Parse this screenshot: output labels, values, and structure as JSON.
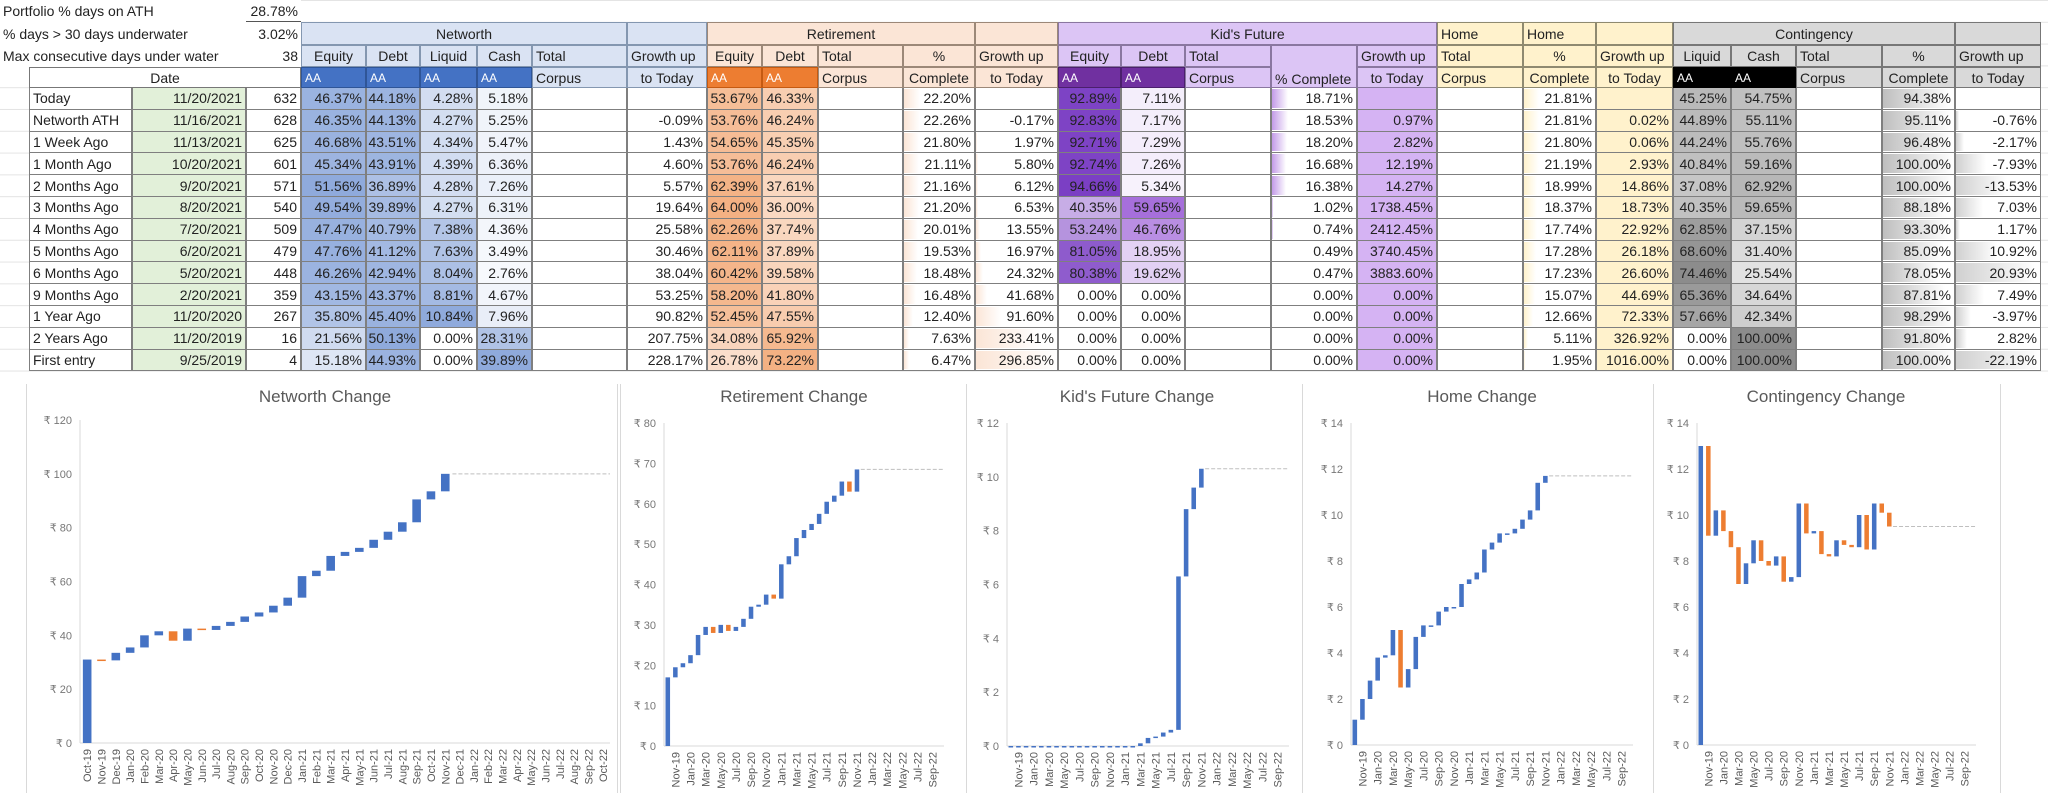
{
  "summary": [
    {
      "label": "Portfolio % days on ATH",
      "value": "28.78%"
    },
    {
      "label": "% days > 30 days underwater",
      "value": "3.02%"
    },
    {
      "label": "Max consecutive days under water",
      "value": "38"
    }
  ],
  "groups": {
    "networth": "Networth",
    "retirement": "Retirement",
    "kids": "Kid's Future",
    "home_total": "Home",
    "home": "Home",
    "contingency": "Contingency"
  },
  "col_headers": {
    "equity": "Equity",
    "debt": "Debt",
    "liquid": "Liquid",
    "cash": "Cash",
    "total": "Total",
    "corpus": "Corpus",
    "growth1": "Growth up",
    "growth2": "to Today",
    "pct": "%",
    "complete": "Complete",
    "pct_complete": "% Complete",
    "aa": "AA",
    "date": "Date"
  },
  "colors": {
    "networth": "#4472c4",
    "retirement": "#ed7d31",
    "kids": "#7030a0",
    "home": "#ffd966",
    "contingency": "#000000",
    "increase": "#4472c4",
    "decrease": "#ed7d31"
  },
  "rows": [
    {
      "cells": [
        "Today",
        "11/20/2021",
        "632",
        "46.37%",
        "44.18%",
        "4.28%",
        "5.18%",
        "",
        "",
        "53.67%",
        "46.33%",
        "",
        "22.20%",
        "",
        "92.89%",
        "7.11%",
        "",
        "18.71%",
        "",
        "",
        "21.81%",
        "",
        "45.25%",
        "54.75%",
        "",
        "94.38%",
        ""
      ]
    },
    {
      "cells": [
        "Networth ATH",
        "11/16/2021",
        "628",
        "46.35%",
        "44.13%",
        "4.27%",
        "5.25%",
        "",
        "-0.09%",
        "53.76%",
        "46.24%",
        "",
        "22.26%",
        "-0.17%",
        "92.83%",
        "7.17%",
        "",
        "18.53%",
        "0.97%",
        "",
        "21.81%",
        "0.02%",
        "44.89%",
        "55.11%",
        "",
        "95.11%",
        "-0.76%"
      ]
    },
    {
      "cells": [
        "1 Week Ago",
        "11/13/2021",
        "625",
        "46.68%",
        "43.51%",
        "4.34%",
        "5.47%",
        "",
        "1.43%",
        "54.65%",
        "45.35%",
        "",
        "21.80%",
        "1.97%",
        "92.71%",
        "7.29%",
        "",
        "18.20%",
        "2.82%",
        "",
        "21.80%",
        "0.06%",
        "44.24%",
        "55.76%",
        "",
        "96.48%",
        "-2.17%"
      ]
    },
    {
      "cells": [
        "1 Month Ago",
        "10/20/2021",
        "601",
        "45.34%",
        "43.91%",
        "4.39%",
        "6.36%",
        "",
        "4.60%",
        "53.76%",
        "46.24%",
        "",
        "21.11%",
        "5.80%",
        "92.74%",
        "7.26%",
        "",
        "16.68%",
        "12.19%",
        "",
        "21.19%",
        "2.93%",
        "40.84%",
        "59.16%",
        "",
        "100.00%",
        "-7.93%"
      ]
    },
    {
      "cells": [
        "2 Months Ago",
        "9/20/2021",
        "571",
        "51.56%",
        "36.89%",
        "4.28%",
        "7.26%",
        "",
        "5.57%",
        "62.39%",
        "37.61%",
        "",
        "21.16%",
        "6.12%",
        "94.66%",
        "5.34%",
        "",
        "16.38%",
        "14.27%",
        "",
        "18.99%",
        "14.86%",
        "37.08%",
        "62.92%",
        "",
        "100.00%",
        "-13.53%"
      ]
    },
    {
      "cells": [
        "3 Months Ago",
        "8/20/2021",
        "540",
        "49.54%",
        "39.89%",
        "4.27%",
        "6.31%",
        "",
        "19.64%",
        "64.00%",
        "36.00%",
        "",
        "21.20%",
        "6.53%",
        "40.35%",
        "59.65%",
        "",
        "1.02%",
        "1738.45%",
        "",
        "18.37%",
        "18.73%",
        "40.35%",
        "59.65%",
        "",
        "88.18%",
        "7.03%"
      ]
    },
    {
      "cells": [
        "4 Months Ago",
        "7/20/2021",
        "509",
        "47.47%",
        "40.79%",
        "7.38%",
        "4.36%",
        "",
        "25.58%",
        "62.26%",
        "37.74%",
        "",
        "20.01%",
        "13.55%",
        "53.24%",
        "46.76%",
        "",
        "0.74%",
        "2412.45%",
        "",
        "17.74%",
        "22.92%",
        "62.85%",
        "37.15%",
        "",
        "93.30%",
        "1.17%"
      ]
    },
    {
      "cells": [
        "5 Months Ago",
        "6/20/2021",
        "479",
        "47.76%",
        "41.12%",
        "7.63%",
        "3.49%",
        "",
        "30.46%",
        "62.11%",
        "37.89%",
        "",
        "19.53%",
        "16.97%",
        "81.05%",
        "18.95%",
        "",
        "0.49%",
        "3740.45%",
        "",
        "17.28%",
        "26.18%",
        "68.60%",
        "31.40%",
        "",
        "85.09%",
        "10.92%"
      ]
    },
    {
      "cells": [
        "6 Months Ago",
        "5/20/2021",
        "448",
        "46.26%",
        "42.94%",
        "8.04%",
        "2.76%",
        "",
        "38.04%",
        "60.42%",
        "39.58%",
        "",
        "18.48%",
        "24.32%",
        "80.38%",
        "19.62%",
        "",
        "0.47%",
        "3883.60%",
        "",
        "17.23%",
        "26.60%",
        "74.46%",
        "25.54%",
        "",
        "78.05%",
        "20.93%"
      ]
    },
    {
      "cells": [
        "9 Months Ago",
        "2/20/2021",
        "359",
        "43.15%",
        "43.37%",
        "8.81%",
        "4.67%",
        "",
        "53.25%",
        "58.20%",
        "41.80%",
        "",
        "16.48%",
        "41.68%",
        "0.00%",
        "0.00%",
        "",
        "0.00%",
        "0.00%",
        "",
        "15.07%",
        "44.69%",
        "65.36%",
        "34.64%",
        "",
        "87.81%",
        "7.49%"
      ]
    },
    {
      "cells": [
        "1 Year Ago",
        "11/20/2020",
        "267",
        "35.80%",
        "45.40%",
        "10.84%",
        "7.96%",
        "",
        "90.82%",
        "52.45%",
        "47.55%",
        "",
        "12.40%",
        "91.60%",
        "0.00%",
        "0.00%",
        "",
        "0.00%",
        "0.00%",
        "",
        "12.66%",
        "72.33%",
        "57.66%",
        "42.34%",
        "",
        "98.29%",
        "-3.97%"
      ]
    },
    {
      "cells": [
        "2 Years Ago",
        "11/20/2019",
        "16",
        "21.56%",
        "50.13%",
        "0.00%",
        "28.31%",
        "",
        "207.75%",
        "34.08%",
        "65.92%",
        "",
        "7.63%",
        "233.41%",
        "0.00%",
        "0.00%",
        "",
        "0.00%",
        "0.00%",
        "",
        "5.11%",
        "326.92%",
        "0.00%",
        "100.00%",
        "",
        "91.80%",
        "2.82%"
      ]
    },
    {
      "cells": [
        "First entry",
        "9/25/2019",
        "4",
        "15.18%",
        "44.93%",
        "0.00%",
        "39.89%",
        "",
        "228.17%",
        "26.78%",
        "73.22%",
        "",
        "6.47%",
        "296.85%",
        "0.00%",
        "0.00%",
        "",
        "0.00%",
        "0.00%",
        "",
        "1.95%",
        "1016.00%",
        "0.00%",
        "100.00%",
        "",
        "100.00%",
        "-22.19%"
      ]
    }
  ],
  "chart_data": [
    {
      "type": "waterfall",
      "title": "Networth Change",
      "ylim": [
        0,
        120
      ],
      "y_ticks": [
        "₹ 0",
        "₹ 20",
        "₹ 40",
        "₹ 60",
        "₹ 80",
        "₹ 100",
        "₹ 120"
      ],
      "x_labels": [
        "Oct-19",
        "Nov-19",
        "Dec-19",
        "Jan-20",
        "Feb-20",
        "Mar-20",
        "Apr-20",
        "May-20",
        "Jun-20",
        "Jul-20",
        "Aug-20",
        "Sep-20",
        "Oct-20",
        "Nov-20",
        "Dec-20",
        "Jan-21",
        "Feb-21",
        "Mar-21",
        "Apr-21",
        "May-21",
        "Jun-21",
        "Jul-21",
        "Aug-21",
        "Sep-21",
        "Oct-21",
        "Nov-21",
        "Dec-21",
        "Jan-22",
        "Feb-22",
        "Mar-22",
        "Apr-22",
        "May-22",
        "Jun-22",
        "Jul-22",
        "Aug-22",
        "Sep-22",
        "Oct-22"
      ],
      "levels": [
        31,
        30.7,
        33.5,
        35.5,
        40,
        41.5,
        38,
        42.5,
        42,
        43.5,
        45,
        47,
        48.5,
        51,
        54,
        62,
        64,
        69.5,
        71,
        72.5,
        75.5,
        78.5,
        82,
        90.5,
        93.5,
        100
      ]
    },
    {
      "type": "waterfall",
      "title": "Retirement Change",
      "ylim": [
        0,
        80
      ],
      "y_ticks": [
        "₹ 0",
        "₹ 10",
        "₹ 20",
        "₹ 30",
        "₹ 40",
        "₹ 50",
        "₹ 60",
        "₹ 70",
        "₹ 80"
      ],
      "x_labels": [
        "Nov-19",
        "Jan-20",
        "Mar-20",
        "May-20",
        "Jul-20",
        "Sep-20",
        "Nov-20",
        "Jan-21",
        "Mar-21",
        "May-21",
        "Jul-21",
        "Sep-21",
        "Nov-21",
        "Jan-22",
        "Mar-22",
        "May-22",
        "Jul-22",
        "Sep-22"
      ],
      "levels": [
        17,
        19.5,
        20.5,
        22.5,
        27.5,
        29.5,
        28,
        30,
        28.5,
        29.5,
        31.5,
        34.5,
        35,
        37.5,
        36.5,
        45,
        47,
        51.5,
        53.5,
        55,
        57.5,
        60.5,
        62,
        65.5,
        63,
        68.5
      ]
    },
    {
      "type": "waterfall",
      "title": "Kid's Future Change",
      "ylim": [
        0,
        12
      ],
      "y_ticks": [
        "₹ 0",
        "₹ 2",
        "₹ 4",
        "₹ 6",
        "₹ 8",
        "₹ 10",
        "₹ 12"
      ],
      "x_labels": [
        "Nov-19",
        "Jan-20",
        "Mar-20",
        "May-20",
        "Jul-20",
        "Sep-20",
        "Nov-20",
        "Jan-21",
        "Mar-21",
        "May-21",
        "Jul-21",
        "Sep-21",
        "Nov-21",
        "Jan-22",
        "Mar-22",
        "May-22",
        "Jul-22",
        "Sep-22"
      ],
      "levels": [
        0,
        0,
        0,
        0,
        0,
        0,
        0,
        0,
        0,
        0,
        0,
        0,
        0,
        0,
        0,
        0,
        0,
        0.1,
        0.3,
        0.35,
        0.5,
        0.6,
        6.3,
        8.8,
        9.6,
        10.3
      ]
    },
    {
      "type": "waterfall",
      "title": "Home Change",
      "ylim": [
        0,
        14
      ],
      "y_ticks": [
        "₹ 0",
        "₹ 2",
        "₹ 4",
        "₹ 6",
        "₹ 8",
        "₹ 10",
        "₹ 12",
        "₹ 14"
      ],
      "x_labels": [
        "Nov-19",
        "Jan-20",
        "Mar-20",
        "May-20",
        "Jul-20",
        "Sep-20",
        "Nov-20",
        "Jan-21",
        "Mar-21",
        "May-21",
        "Jul-21",
        "Sep-21",
        "Nov-21",
        "Jan-22",
        "Mar-22",
        "May-22",
        "Jul-22",
        "Sep-22"
      ],
      "levels": [
        1.1,
        2.0,
        2.8,
        3.8,
        3.9,
        5.0,
        2.5,
        3.3,
        4.7,
        5.2,
        5.2,
        5.8,
        6.0,
        6.0,
        7.0,
        7.2,
        7.5,
        8.5,
        8.8,
        9.2,
        9.2,
        9.4,
        9.8,
        10.2,
        11.4,
        11.7
      ]
    },
    {
      "type": "waterfall",
      "title": "Contingency Change",
      "ylim": [
        0,
        14
      ],
      "y_ticks": [
        "₹ 0",
        "₹ 2",
        "₹ 4",
        "₹ 6",
        "₹ 8",
        "₹ 10",
        "₹ 12",
        "₹ 14"
      ],
      "x_labels": [
        "Nov-19",
        "Jan-20",
        "Mar-20",
        "May-20",
        "Jul-20",
        "Sep-20",
        "Nov-20",
        "Jan-21",
        "Mar-21",
        "May-21",
        "Jul-21",
        "Sep-21",
        "Nov-21",
        "Jan-22",
        "Mar-22",
        "May-22",
        "Jul-22",
        "Sep-22"
      ],
      "levels": [
        13.0,
        9.1,
        10.2,
        9.3,
        8.6,
        7.0,
        7.9,
        8.9,
        8.0,
        7.8,
        8.2,
        7.1,
        7.3,
        10.5,
        9.2,
        9.3,
        8.3,
        8.2,
        8.9,
        8.7,
        8.6,
        10.0,
        8.5,
        10.5,
        10.1,
        9.5
      ]
    }
  ]
}
